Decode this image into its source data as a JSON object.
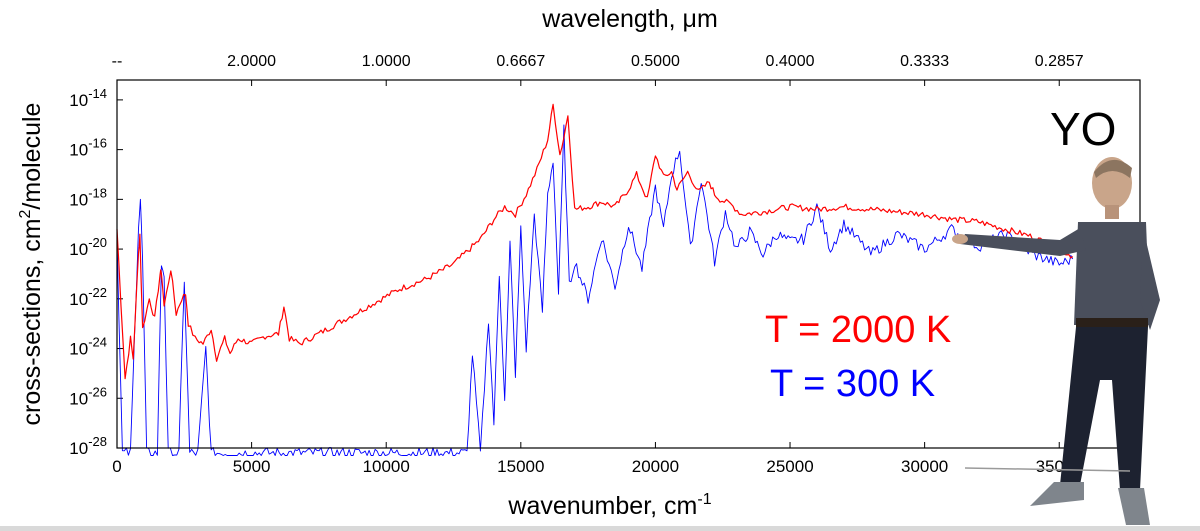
{
  "chart_data": {
    "type": "line",
    "title": "",
    "molecule_label": "YO",
    "xlabel": "wavenumber, cm",
    "xlabel_superscript": "-1",
    "top_xlabel": "wavelength, μm",
    "ylabel": "cross-sections, cm",
    "ylabel_superscript": "2",
    "ylabel_suffix": "/molecule",
    "xlim": [
      0,
      38000
    ],
    "ylim_log10": [
      -28,
      -13.2
    ],
    "x_ticks": [
      {
        "value": 0,
        "label": "0"
      },
      {
        "value": 5000,
        "label": "5000"
      },
      {
        "value": 10000,
        "label": "10000"
      },
      {
        "value": 15000,
        "label": "15000"
      },
      {
        "value": 20000,
        "label": "20000"
      },
      {
        "value": 25000,
        "label": "25000"
      },
      {
        "value": 30000,
        "label": "30000"
      },
      {
        "value": 35000,
        "label": "35000"
      }
    ],
    "top_ticks": [
      {
        "value": 0,
        "label": "--"
      },
      {
        "value": 5000,
        "label": "2.0000"
      },
      {
        "value": 10000,
        "label": "1.0000"
      },
      {
        "value": 15000,
        "label": "0.6667"
      },
      {
        "value": 20000,
        "label": "0.5000"
      },
      {
        "value": 25000,
        "label": "0.4000"
      },
      {
        "value": 30000,
        "label": "0.3333"
      },
      {
        "value": 35000,
        "label": "0.2857"
      }
    ],
    "y_ticks": [
      {
        "exp": -28,
        "base": "10",
        "label": "-28"
      },
      {
        "exp": -26,
        "base": "10",
        "label": "-26"
      },
      {
        "exp": -24,
        "base": "10",
        "label": "-24"
      },
      {
        "exp": -22,
        "base": "10",
        "label": "-22"
      },
      {
        "exp": -20,
        "base": "10",
        "label": "-20"
      },
      {
        "exp": -18,
        "base": "10",
        "label": "-18"
      },
      {
        "exp": -16,
        "base": "10",
        "label": "-16"
      },
      {
        "exp": -14,
        "base": "10",
        "label": "-14"
      }
    ],
    "series": [
      {
        "name": "T = 2000 K",
        "color": "#ff0000",
        "x": [
          0,
          300,
          500,
          600,
          800,
          850,
          950,
          1200,
          1400,
          1600,
          1650,
          1750,
          2000,
          2200,
          2400,
          2550,
          2650,
          2900,
          3200,
          3500,
          3700,
          4000,
          4200,
          4500,
          5000,
          5500,
          6000,
          6200,
          6400,
          6800,
          7500,
          8500,
          9500,
          10500,
          11500,
          12500,
          13500,
          14000,
          14400,
          14800,
          15200,
          15600,
          16000,
          16200,
          16450,
          16600,
          16750,
          17000,
          17500,
          18000,
          18500,
          19000,
          19300,
          19700,
          20000,
          20300,
          20600,
          20800,
          21200,
          21600,
          22000,
          22200,
          22400,
          22800,
          23200,
          24000,
          25000,
          26000,
          27000,
          28000,
          29000,
          30000,
          31000,
          32000,
          33000,
          34000,
          35000,
          35500
        ],
        "y": [
          -19.2,
          -25.2,
          -23.6,
          -24.4,
          -20.2,
          -19.4,
          -23.2,
          -22.0,
          -22.8,
          -21.0,
          -20.9,
          -22.3,
          -20.8,
          -22.6,
          -22.0,
          -21.8,
          -23.0,
          -23.6,
          -23.8,
          -23.2,
          -24.4,
          -23.6,
          -24.2,
          -23.6,
          -23.8,
          -23.5,
          -23.4,
          -22.3,
          -23.6,
          -23.8,
          -23.4,
          -22.8,
          -22.2,
          -21.6,
          -21.2,
          -20.6,
          -19.6,
          -18.8,
          -18.3,
          -18.6,
          -17.8,
          -16.8,
          -15.6,
          -14.2,
          -16.2,
          -15.5,
          -14.6,
          -18.4,
          -18.3,
          -18.1,
          -18.3,
          -17.6,
          -17.0,
          -18.0,
          -16.2,
          -17.1,
          -16.9,
          -17.6,
          -16.9,
          -17.7,
          -17.3,
          -17.8,
          -18.0,
          -18.2,
          -18.6,
          -18.5,
          -18.3,
          -18.4,
          -18.3,
          -18.4,
          -18.5,
          -18.6,
          -18.8,
          -18.9,
          -19.2,
          -19.5,
          -20.0,
          -20.3
        ]
      },
      {
        "name": "T = 300 K",
        "color": "#0000ff",
        "x": [
          0,
          200,
          500,
          800,
          870,
          950,
          1100,
          1500,
          1650,
          1750,
          1900,
          2300,
          2500,
          2700,
          3000,
          3300,
          3500,
          13000,
          13200,
          13500,
          13800,
          14000,
          14200,
          14400,
          14600,
          14800,
          15000,
          15200,
          15500,
          15800,
          16000,
          16200,
          16400,
          16600,
          16800,
          17000,
          17500,
          18000,
          18500,
          19000,
          19500,
          20000,
          20300,
          20600,
          20900,
          21300,
          21700,
          22200,
          22600,
          23000,
          23500,
          24000,
          24500,
          25000,
          25500,
          26000,
          26500,
          27000,
          28000,
          29000,
          30000,
          31000,
          32000,
          33000,
          34000,
          35000,
          35500
        ],
        "y": [
          -19.5,
          -28.2,
          -28.2,
          -19.0,
          -18.0,
          -20.5,
          -28.2,
          -28.2,
          -20.6,
          -21.0,
          -28.2,
          -28.2,
          -21.2,
          -28.2,
          -28.2,
          -24.0,
          -28.2,
          -28.2,
          -24.2,
          -28.2,
          -22.8,
          -27.0,
          -21.0,
          -26.0,
          -19.8,
          -25.0,
          -19.2,
          -24.0,
          -18.6,
          -22.5,
          -17.8,
          -16.4,
          -21.8,
          -15.2,
          -21.5,
          -20.5,
          -22.0,
          -19.5,
          -21.5,
          -19.0,
          -20.8,
          -17.5,
          -19.2,
          -17.0,
          -16.0,
          -20.0,
          -17.2,
          -20.5,
          -18.5,
          -20.0,
          -19.3,
          -20.2,
          -19.4,
          -19.7,
          -19.6,
          -18.3,
          -20.0,
          -19.0,
          -20.2,
          -19.4,
          -20.0,
          -19.2,
          -19.9,
          -19.4,
          -20.2,
          -20.6,
          -20.4
        ]
      }
    ],
    "legend": [
      {
        "text": "T = 2000 K",
        "color": "#ff0000"
      },
      {
        "text": "T = 300 K",
        "color": "#0000ff"
      }
    ]
  }
}
